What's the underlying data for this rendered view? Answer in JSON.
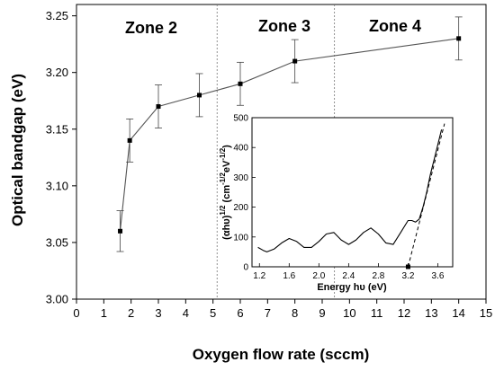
{
  "chart_data": [
    {
      "type": "line",
      "xlabel": "Oxygen flow rate (sccm)",
      "ylabel": "Optical bandgap (eV)",
      "xlim": [
        0,
        15
      ],
      "ylim": [
        3.0,
        3.26
      ],
      "xticks": [
        "0",
        "1",
        "2",
        "3",
        "4",
        "5",
        "6",
        "7",
        "8",
        "9",
        "10",
        "11",
        "12",
        "13",
        "14",
        "15"
      ],
      "yticks": [
        "3.00",
        "3.05",
        "3.10",
        "3.15",
        "3.20",
        "3.25"
      ],
      "series": [
        {
          "x": [
            1.6,
            1.95,
            3.0,
            4.5,
            6.0,
            8.0,
            14.0
          ],
          "y": [
            3.06,
            3.14,
            3.17,
            3.18,
            3.19,
            3.21,
            3.23
          ],
          "error": [
            0.018,
            0.019,
            0.019,
            0.019,
            0.019,
            0.019,
            0.019
          ],
          "color": "#000000"
        }
      ],
      "zone_dividers_x": [
        5.15,
        9.45
      ],
      "zones": [
        "Zone 2",
        "Zone 3",
        "Zone 4"
      ],
      "grid": false
    },
    {
      "type": "line",
      "xlabel": "Energy hυ (eV)",
      "ylabel_main": "(αhυ)",
      "ylabel_main_sup": "1/2",
      "ylabel_units": "(cm",
      "ylabel_units_sup1": "-1/2",
      "ylabel_units_mid": "eV",
      "ylabel_units_sup2": "-1/2",
      "ylabel_units_end": ")",
      "xlim": [
        1.1,
        3.8
      ],
      "ylim": [
        0,
        500
      ],
      "xticks": [
        "1.2",
        "1.6",
        "2.0",
        "2.4",
        "2.8",
        "3.2",
        "3.6"
      ],
      "yticks": [
        "0",
        "100",
        "200",
        "300",
        "400",
        "500"
      ],
      "series": [
        {
          "x": [
            1.18,
            1.25,
            1.3,
            1.4,
            1.5,
            1.6,
            1.7,
            1.8,
            1.9,
            2.0,
            2.1,
            2.2,
            2.3,
            2.4,
            2.5,
            2.6,
            2.7,
            2.8,
            2.9,
            3.0,
            3.1,
            3.2,
            3.25,
            3.3,
            3.35,
            3.4,
            3.45,
            3.5,
            3.55,
            3.6,
            3.65
          ],
          "y": [
            65,
            55,
            50,
            60,
            80,
            95,
            85,
            65,
            65,
            85,
            110,
            115,
            90,
            75,
            90,
            115,
            130,
            110,
            80,
            75,
            115,
            155,
            155,
            150,
            160,
            200,
            250,
            310,
            360,
            410,
            460
          ],
          "color": "#000000"
        }
      ],
      "tangent": {
        "x": [
          3.2,
          3.69
        ],
        "y": [
          0,
          480
        ]
      },
      "intercept_marker": {
        "x": 3.2,
        "y": 0
      },
      "grid": false
    }
  ]
}
